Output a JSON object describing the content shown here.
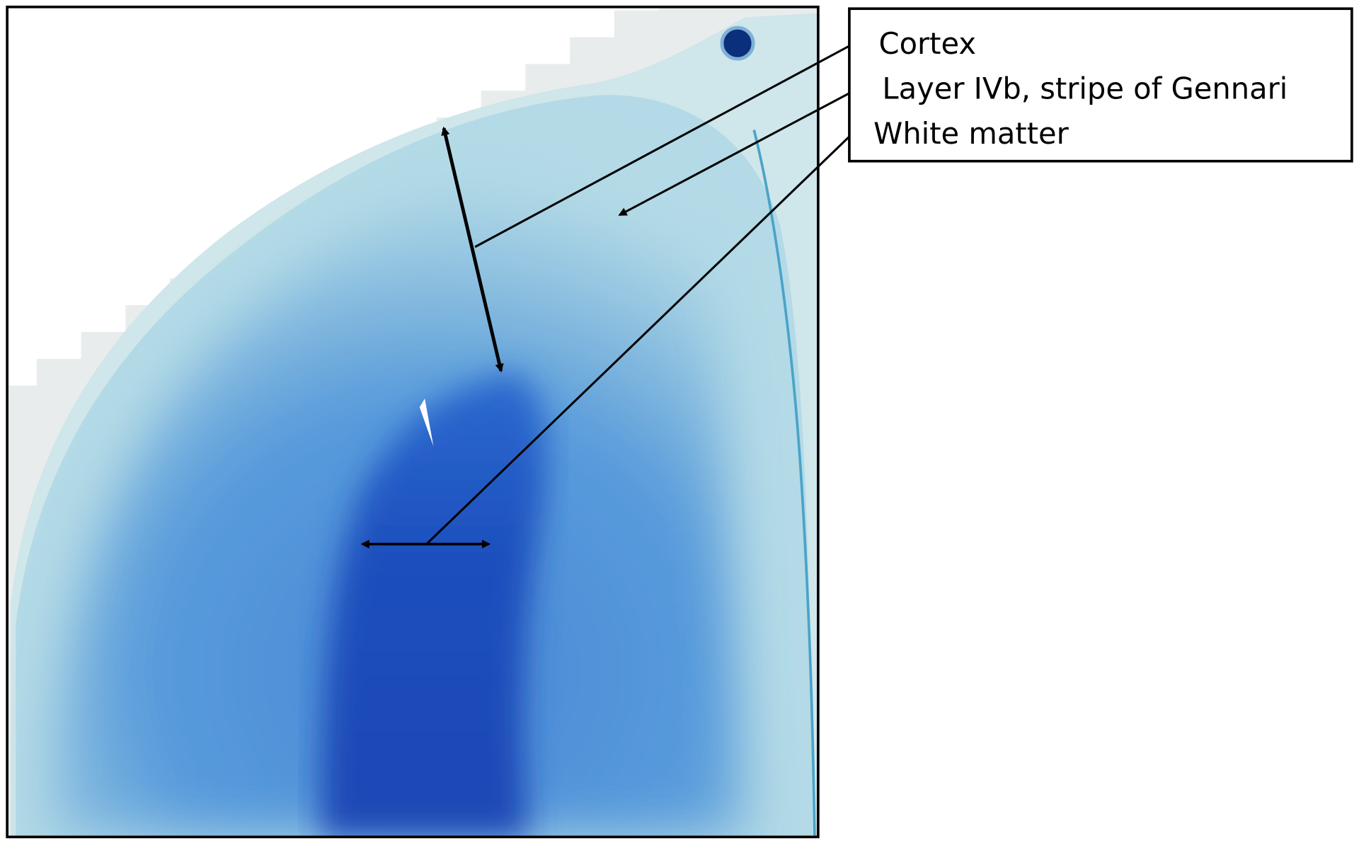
{
  "labels": {
    "cortex": "Cortex",
    "layer_ivb": "Layer IVb, stripe of Gennari",
    "white_matter": "White matter"
  },
  "colors": {
    "background_stain": "#a9d3e3",
    "cortex_stain": "#7fb6de",
    "white_matter_stain": "#1f55c0",
    "annotation": "#000000"
  }
}
